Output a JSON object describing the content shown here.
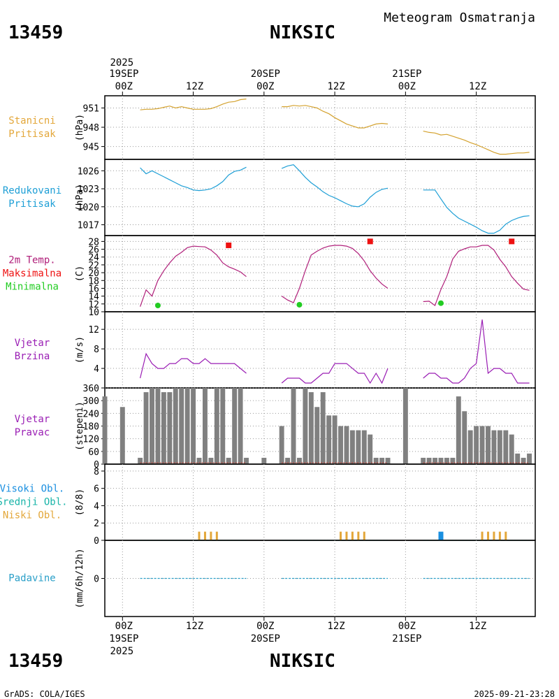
{
  "header": {
    "subtitle": "Meteogram Osmatranja",
    "station_id": "13459",
    "station_name": "NIKSIC"
  },
  "footer": {
    "station_id": "13459",
    "station_name": "NIKSIC",
    "credit": "GrADS: COLA/IGES",
    "timestamp": "2025-09-21-23:28"
  },
  "time_axis": {
    "year": "2025",
    "ticks": [
      {
        "h": 0,
        "label": "00Z",
        "date": "19SEP",
        "year": "2025"
      },
      {
        "h": 12,
        "label": "12Z"
      },
      {
        "h": 24,
        "label": "00Z",
        "date": "20SEP"
      },
      {
        "h": 36,
        "label": "12Z"
      },
      {
        "h": 48,
        "label": "00Z",
        "date": "21SEP"
      },
      {
        "h": 60,
        "label": "12Z"
      }
    ],
    "range_hours": [
      -3,
      70
    ]
  },
  "colors": {
    "pressure": "#d4a22f",
    "reduced": "#1e9fd6",
    "temp": "#b01f7a",
    "tmax": "#ee1111",
    "tmin": "#22cc22",
    "wind": "#9a1eb4",
    "dir_bar": "#808080",
    "low_cloud": "#e3a73a",
    "mid_cloud": "#18b4a8",
    "high_cloud": "#1a8fe0",
    "precip": "#2a9fc8",
    "panel_labels": [
      "#e3a73a",
      "#1e9fd6",
      "#ee1111",
      "#9a1eb4",
      "#9a1eb4",
      "#1e9fd6",
      "#2a9fc8"
    ]
  },
  "chart_data": [
    {
      "type": "line",
      "id": "station_pressure",
      "labels": [
        "Stanicni",
        "Pritisak"
      ],
      "ylabel": "(hPa)",
      "ylim": [
        943,
        952.9
      ],
      "yticks": [
        945,
        948,
        951
      ],
      "segments": [
        {
          "x": [
            3,
            4,
            5,
            6,
            7,
            8,
            9,
            10,
            11,
            12,
            13,
            14,
            15,
            16,
            17,
            18,
            19,
            20,
            21
          ],
          "y": [
            950.7,
            950.8,
            950.8,
            950.9,
            951.1,
            951.3,
            951.0,
            951.2,
            951.0,
            950.8,
            950.8,
            950.8,
            950.9,
            951.2,
            951.6,
            951.9,
            952.0,
            952.3,
            952.4
          ]
        },
        {
          "x": [
            27,
            28,
            29,
            30,
            31,
            32,
            33,
            34,
            35,
            36,
            37,
            38,
            39,
            40,
            41,
            42,
            43,
            44,
            45
          ],
          "y": [
            951.2,
            951.2,
            951.4,
            951.3,
            951.4,
            951.2,
            951.0,
            950.5,
            950.1,
            949.5,
            949.0,
            948.5,
            948.2,
            947.9,
            947.9,
            948.2,
            948.5,
            948.6,
            948.5
          ]
        },
        {
          "x": [
            51,
            52,
            53,
            54,
            55,
            56,
            57,
            58,
            59,
            60,
            61,
            62,
            63,
            64,
            65,
            66,
            67,
            68,
            69
          ],
          "y": [
            947.4,
            947.2,
            947.1,
            946.8,
            946.9,
            946.6,
            946.3,
            946.0,
            945.6,
            945.3,
            944.9,
            944.5,
            944.1,
            943.8,
            943.8,
            943.9,
            944.0,
            944.0,
            944.1
          ]
        }
      ]
    },
    {
      "type": "line",
      "id": "reduced_pressure",
      "labels": [
        "Redukovani",
        "Pritisak"
      ],
      "ylabel": "(hPa)",
      "ylim": [
        1015.2,
        1027.9
      ],
      "yticks": [
        1017,
        1020,
        1023,
        1026
      ],
      "segments": [
        {
          "x": [
            3,
            4,
            5,
            6,
            7,
            8,
            9,
            10,
            11,
            12,
            13,
            14,
            15,
            16,
            17,
            18,
            19,
            20,
            21
          ],
          "y": [
            1026.5,
            1025.5,
            1026.0,
            1025.5,
            1025.0,
            1024.5,
            1024.0,
            1023.5,
            1023.2,
            1022.8,
            1022.7,
            1022.8,
            1023.0,
            1023.5,
            1024.2,
            1025.3,
            1025.9,
            1026.1,
            1026.6
          ]
        },
        {
          "x": [
            27,
            28,
            29,
            30,
            31,
            32,
            33,
            34,
            35,
            36,
            37,
            38,
            39,
            40,
            41,
            42,
            43,
            44,
            45
          ],
          "y": [
            1026.4,
            1026.8,
            1027.0,
            1026.0,
            1024.9,
            1024.0,
            1023.3,
            1022.5,
            1021.9,
            1021.5,
            1021.0,
            1020.5,
            1020.1,
            1020.0,
            1020.5,
            1021.6,
            1022.4,
            1022.9,
            1023.1
          ]
        },
        {
          "x": [
            51,
            52,
            53,
            54,
            55,
            56,
            57,
            58,
            59,
            60,
            61,
            62,
            63,
            64,
            65,
            66,
            67,
            68,
            69
          ],
          "y": [
            1022.8,
            1022.8,
            1022.8,
            1021.3,
            1019.9,
            1018.9,
            1018.1,
            1017.6,
            1017.1,
            1016.6,
            1016.0,
            1015.6,
            1015.6,
            1016.1,
            1017.1,
            1017.7,
            1018.1,
            1018.4,
            1018.5
          ]
        }
      ]
    },
    {
      "type": "line",
      "id": "temperature",
      "labels": [
        "2m Temp.",
        "Maksimalna",
        "Minimalna"
      ],
      "ylabel": "(C)",
      "ylim": [
        10,
        29.5
      ],
      "yticks": [
        10,
        12,
        14,
        16,
        18,
        20,
        22,
        24,
        26,
        28
      ],
      "segments": [
        {
          "x": [
            3,
            4,
            5,
            6,
            7,
            8,
            9,
            10,
            11,
            12,
            13,
            14,
            15,
            16,
            17,
            18,
            19,
            20,
            21
          ],
          "y": [
            11.3,
            15.6,
            14.0,
            18.0,
            20.5,
            22.5,
            24.2,
            25.2,
            26.4,
            26.8,
            26.7,
            26.6,
            25.8,
            24.5,
            22.5,
            21.5,
            20.9,
            20.2,
            19.0
          ]
        },
        {
          "x": [
            27,
            28,
            29,
            30,
            31,
            32,
            33,
            34,
            35,
            36,
            37,
            38,
            39,
            40,
            41,
            42,
            43,
            44,
            45
          ],
          "y": [
            14.0,
            13.0,
            12.3,
            16.0,
            20.5,
            24.5,
            25.5,
            26.3,
            26.8,
            27.0,
            27.0,
            26.8,
            26.2,
            24.9,
            23.0,
            20.5,
            18.6,
            17.1,
            16.0
          ]
        },
        {
          "x": [
            51,
            52,
            53,
            54,
            55,
            56,
            57,
            58,
            59,
            60,
            61,
            62,
            63,
            64,
            65,
            66,
            67,
            68,
            69
          ],
          "y": [
            12.6,
            12.7,
            11.6,
            15.7,
            19.0,
            23.5,
            25.5,
            26.1,
            26.6,
            26.6,
            27.0,
            27.0,
            25.8,
            23.4,
            21.5,
            19.0,
            17.3,
            15.8,
            15.5
          ]
        }
      ],
      "max_points": [
        {
          "x": 18,
          "y": 27
        },
        {
          "x": 42,
          "y": 28
        },
        {
          "x": 66,
          "y": 28
        }
      ],
      "min_points": [
        {
          "x": 6,
          "y": 11.6
        },
        {
          "x": 30,
          "y": 11.8
        },
        {
          "x": 54,
          "y": 12.2
        }
      ]
    },
    {
      "type": "line",
      "id": "wind_speed",
      "labels": [
        "Vjetar",
        "Brzina"
      ],
      "ylabel": "(m/s)",
      "ylim": [
        0,
        15.6
      ],
      "yticks": [
        4,
        8,
        12
      ],
      "segments": [
        {
          "x": [
            3,
            4,
            5,
            6,
            7,
            8,
            9,
            10,
            11,
            12,
            13,
            14,
            15,
            16,
            17,
            18,
            19,
            20,
            21
          ],
          "y": [
            2,
            7,
            5,
            4,
            4,
            5,
            5,
            6,
            6,
            5,
            5,
            6,
            5,
            5,
            5,
            5,
            5,
            4,
            3
          ]
        },
        {
          "x": [
            27,
            28,
            29,
            30,
            31,
            32,
            33,
            34,
            35,
            36,
            37,
            38,
            39,
            40,
            41,
            42,
            43,
            44,
            45
          ],
          "y": [
            1,
            2,
            2,
            2,
            1,
            1,
            2,
            3,
            3,
            5,
            5,
            5,
            4,
            3,
            3,
            1,
            3,
            1,
            4
          ]
        },
        {
          "x": [
            51,
            52,
            53,
            54,
            55,
            56,
            57,
            58,
            59,
            60,
            61,
            62,
            63,
            64,
            65,
            66,
            67,
            68,
            69
          ],
          "y": [
            2,
            3,
            3,
            2,
            2,
            1,
            1,
            2,
            4,
            5,
            14,
            3,
            4,
            4,
            3,
            3,
            1,
            1,
            1
          ]
        }
      ]
    },
    {
      "type": "bar",
      "id": "wind_direction",
      "labels": [
        "Vjetar",
        "Pravac"
      ],
      "ylabel": "(stepeni)",
      "ylim": [
        0,
        360
      ],
      "yticks": [
        0,
        60,
        120,
        180,
        240,
        300,
        360
      ],
      "x": [
        -3,
        0,
        3,
        4,
        5,
        6,
        7,
        8,
        9,
        10,
        11,
        12,
        13,
        14,
        15,
        16,
        17,
        18,
        19,
        20,
        21,
        24,
        27,
        28,
        29,
        30,
        31,
        32,
        33,
        34,
        35,
        36,
        37,
        38,
        39,
        40,
        41,
        42,
        43,
        44,
        45,
        48,
        51,
        52,
        53,
        54,
        55,
        56,
        57,
        58,
        59,
        60,
        61,
        62,
        63,
        64,
        65,
        66,
        67,
        68,
        69
      ],
      "values": [
        320,
        270,
        30,
        340,
        360,
        360,
        340,
        340,
        360,
        360,
        360,
        360,
        30,
        360,
        30,
        360,
        360,
        30,
        360,
        360,
        30,
        30,
        180,
        30,
        360,
        30,
        360,
        340,
        270,
        340,
        230,
        230,
        180,
        180,
        160,
        160,
        160,
        140,
        30,
        30,
        30,
        360,
        30,
        30,
        30,
        30,
        30,
        30,
        320,
        250,
        160,
        180,
        180,
        180,
        160,
        160,
        160,
        140,
        50,
        30,
        50
      ]
    },
    {
      "type": "bar",
      "id": "cloud_cover",
      "labels": [
        "Visoki Obl.",
        "Srednji Obl.",
        "Niski Obl."
      ],
      "ylabel": "(8/8)",
      "ylim": [
        0,
        8.8
      ],
      "yticks": [
        0,
        2,
        4,
        6,
        8
      ],
      "low": {
        "x": [
          13,
          14,
          15,
          16,
          37,
          38,
          39,
          40,
          41,
          61,
          62,
          63,
          64,
          65
        ],
        "values": [
          1,
          1,
          1,
          1,
          1,
          1,
          1,
          1,
          1,
          1,
          1,
          1,
          1,
          1
        ]
      },
      "high": {
        "x": [
          54
        ],
        "values": [
          1
        ]
      }
    },
    {
      "type": "bar",
      "id": "precipitation",
      "labels": [
        "Padavine"
      ],
      "ylabel": "(mm/6h/12h)",
      "ylim": [
        -1,
        1
      ],
      "yticks": [
        0
      ],
      "values_all_zero": true
    }
  ]
}
